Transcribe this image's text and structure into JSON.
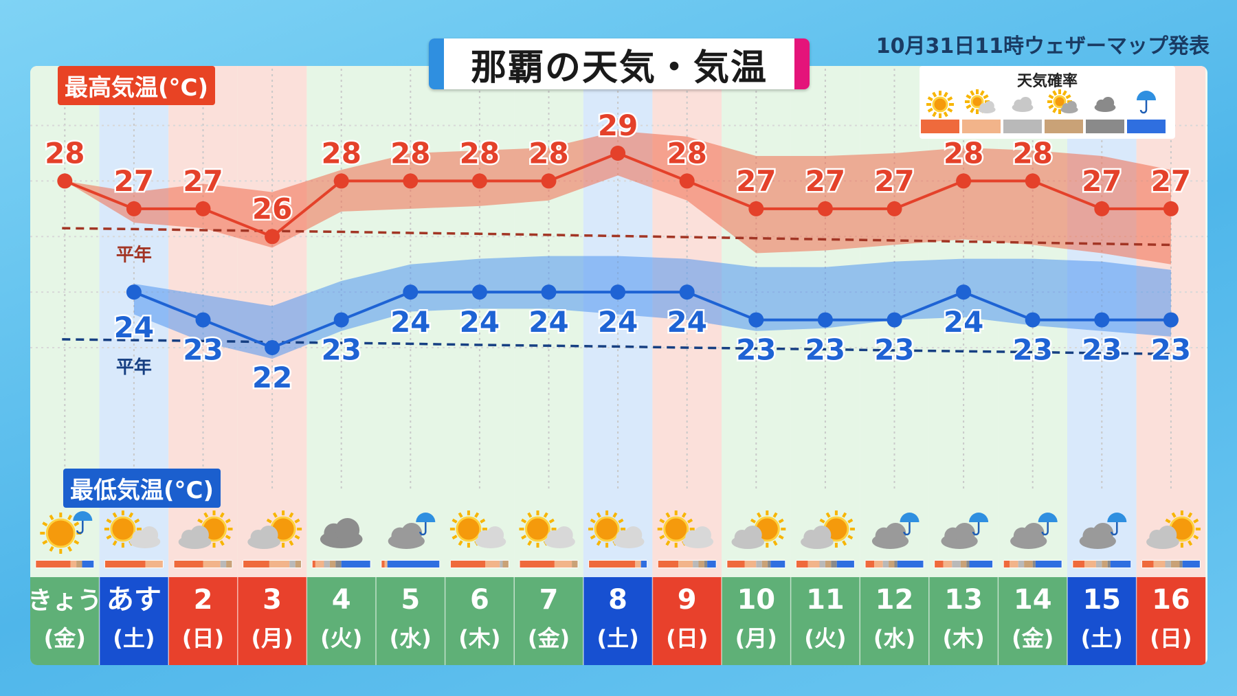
{
  "header": {
    "title": "那覇の天気・気温",
    "issued": "10月31日11時ウェザーマップ発表"
  },
  "labels": {
    "high": "最高気温(°C)",
    "low": "最低気温(°C)",
    "normal": "平年"
  },
  "legend": {
    "title": "天気確率",
    "items": [
      {
        "icon": "sun-icon",
        "color": "#ef6a3c"
      },
      {
        "icon": "sun-cloud-icon",
        "color": "#f2b48a"
      },
      {
        "icon": "cloud-icon",
        "color": "#b9b9b9"
      },
      {
        "icon": "sun-cloud-dark-icon",
        "color": "#c9a277"
      },
      {
        "icon": "dark-cloud-icon",
        "color": "#8a8a8a"
      },
      {
        "icon": "umbrella-icon",
        "color": "#2f6fe0"
      }
    ]
  },
  "colors": {
    "high": "#e4412a",
    "low": "#1e63d4",
    "normal_high": "#a23524",
    "normal_low": "#163f82",
    "weekday": "#5fb077",
    "saturday": "#1750d1",
    "sunday": "#e8412c"
  },
  "chart_data": {
    "type": "line",
    "categories": [
      {
        "day": "きょう",
        "dow": "(金)",
        "kind": "weekday",
        "weather": "sun-umbrella-icon"
      },
      {
        "day": "あす",
        "dow": "(土)",
        "kind": "saturday",
        "weather": "sun-cloud-icon"
      },
      {
        "day": "2",
        "dow": "(日)",
        "kind": "sunday",
        "weather": "cloud-sun-icon"
      },
      {
        "day": "3",
        "dow": "(月)",
        "kind": "sunday",
        "weather": "cloud-sun-icon"
      },
      {
        "day": "4",
        "dow": "(火)",
        "kind": "weekday",
        "weather": "cloud-icon"
      },
      {
        "day": "5",
        "dow": "(水)",
        "kind": "weekday",
        "weather": "cloud-umbrella-icon"
      },
      {
        "day": "6",
        "dow": "(木)",
        "kind": "weekday",
        "weather": "sun-cloud-icon"
      },
      {
        "day": "7",
        "dow": "(金)",
        "kind": "weekday",
        "weather": "sun-cloud-icon"
      },
      {
        "day": "8",
        "dow": "(土)",
        "kind": "saturday",
        "weather": "sun-cloud-icon"
      },
      {
        "day": "9",
        "dow": "(日)",
        "kind": "sunday",
        "weather": "sun-cloud-icon"
      },
      {
        "day": "10",
        "dow": "(月)",
        "kind": "weekday",
        "weather": "cloud-sun-icon"
      },
      {
        "day": "11",
        "dow": "(火)",
        "kind": "weekday",
        "weather": "cloud-sun-icon"
      },
      {
        "day": "12",
        "dow": "(水)",
        "kind": "weekday",
        "weather": "cloud-umbrella-icon"
      },
      {
        "day": "13",
        "dow": "(木)",
        "kind": "weekday",
        "weather": "cloud-umbrella-icon"
      },
      {
        "day": "14",
        "dow": "(金)",
        "kind": "weekday",
        "weather": "cloud-umbrella-icon"
      },
      {
        "day": "15",
        "dow": "(土)",
        "kind": "saturday",
        "weather": "cloud-umbrella-icon"
      },
      {
        "day": "16",
        "dow": "(日)",
        "kind": "sunday",
        "weather": "cloud-sun-icon"
      }
    ],
    "series": [
      {
        "name": "最高気温",
        "values": [
          28,
          27,
          27,
          26,
          28,
          28,
          28,
          28,
          29,
          28,
          27,
          27,
          27,
          28,
          28,
          27,
          27
        ],
        "range_low": [
          null,
          26.5,
          26.3,
          25.6,
          26.9,
          27.0,
          27.1,
          27.3,
          28.2,
          27.3,
          25.4,
          25.5,
          25.7,
          25.9,
          25.7,
          25.4,
          25.0
        ],
        "range_high": [
          null,
          27.6,
          27.9,
          27.6,
          28.4,
          29.0,
          29.1,
          29.2,
          29.8,
          29.6,
          28.9,
          28.9,
          29.0,
          29.2,
          29.1,
          28.9,
          28.4
        ]
      },
      {
        "name": "最低気温",
        "values": [
          null,
          24,
          23,
          22,
          23,
          24,
          24,
          24,
          24,
          24,
          23,
          23,
          23,
          24,
          23,
          23,
          23
        ],
        "range_low": [
          null,
          23.2,
          22.2,
          21.6,
          22.6,
          23.3,
          23.4,
          23.4,
          23.2,
          23.0,
          22.6,
          22.7,
          23.0,
          23.1,
          22.8,
          22.6,
          22.4
        ],
        "range_high": [
          null,
          24.3,
          23.9,
          23.5,
          24.4,
          25.0,
          25.2,
          25.3,
          25.3,
          25.2,
          24.9,
          24.9,
          25.1,
          25.2,
          25.2,
          25.1,
          24.8
        ]
      },
      {
        "name": "平年",
        "values": [
          26.3,
          26.27,
          26.23,
          26.2,
          26.17,
          26.13,
          26.1,
          26.06,
          26.02,
          25.98,
          25.94,
          25.9,
          25.86,
          25.82,
          25.78,
          25.74,
          25.7
        ]
      },
      {
        "name": "平年",
        "values": [
          22.3,
          22.27,
          22.24,
          22.2,
          22.17,
          22.14,
          22.1,
          22.07,
          22.04,
          22.0,
          21.97,
          21.94,
          21.9,
          21.87,
          21.84,
          21.8,
          21.77
        ]
      }
    ],
    "weather_prob": [
      [
        0.6,
        0.1,
        0.0,
        0.1,
        0.0,
        0.2
      ],
      [
        0.7,
        0.3,
        0.0,
        0.0,
        0.0,
        0.0
      ],
      [
        0.5,
        0.3,
        0.1,
        0.1,
        0.0,
        0.0
      ],
      [
        0.45,
        0.35,
        0.1,
        0.1,
        0.0,
        0.0
      ],
      [
        0.05,
        0.15,
        0.1,
        0.1,
        0.1,
        0.5
      ],
      [
        0.05,
        0.05,
        0.0,
        0.0,
        0.0,
        0.9
      ],
      [
        0.6,
        0.25,
        0.05,
        0.1,
        0.0,
        0.0
      ],
      [
        0.6,
        0.3,
        0.0,
        0.1,
        0.0,
        0.0
      ],
      [
        0.8,
        0.1,
        0.0,
        0.0,
        0.0,
        0.1
      ],
      [
        0.35,
        0.25,
        0.1,
        0.1,
        0.05,
        0.15
      ],
      [
        0.3,
        0.2,
        0.1,
        0.1,
        0.05,
        0.25
      ],
      [
        0.2,
        0.2,
        0.1,
        0.1,
        0.1,
        0.3
      ],
      [
        0.15,
        0.15,
        0.1,
        0.1,
        0.05,
        0.45
      ],
      [
        0.15,
        0.15,
        0.15,
        0.1,
        0.05,
        0.4
      ],
      [
        0.1,
        0.15,
        0.1,
        0.15,
        0.05,
        0.45
      ],
      [
        0.2,
        0.2,
        0.1,
        0.1,
        0.05,
        0.35
      ],
      [
        0.2,
        0.2,
        0.1,
        0.15,
        0.05,
        0.3
      ]
    ],
    "ylim": [
      20.5,
      30.5
    ],
    "grid": true
  }
}
